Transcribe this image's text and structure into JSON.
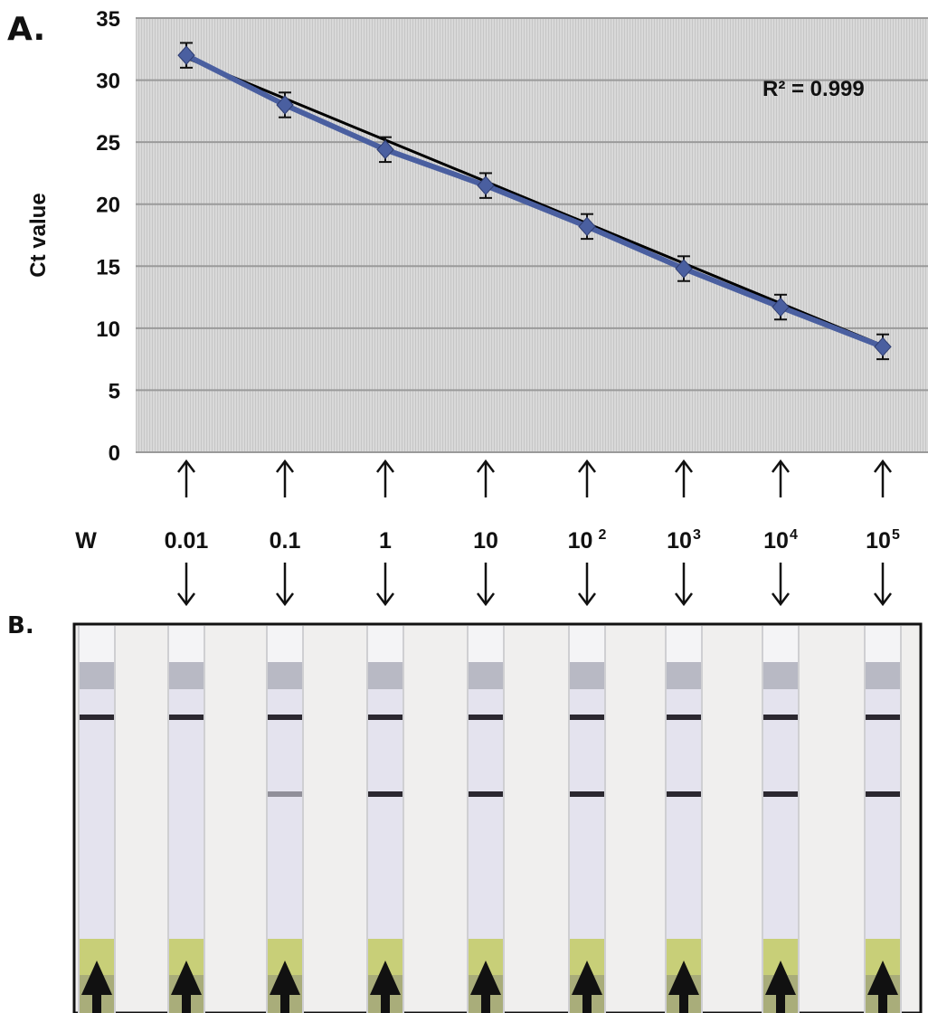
{
  "panels": {
    "a_label": "A.",
    "b_label": "B."
  },
  "chart_data": {
    "type": "line",
    "ylabel": "Ct value",
    "ylim": [
      0,
      35
    ],
    "yticks": [
      0,
      5,
      10,
      15,
      20,
      25,
      30,
      35
    ],
    "grid": true,
    "x": [
      "0.01",
      "0.1",
      "1",
      "10",
      "10^2",
      "10^3",
      "10^4",
      "10^5"
    ],
    "series": [
      {
        "values": [
          32.0,
          28.0,
          24.4,
          21.5,
          18.2,
          14.8,
          11.7,
          8.5
        ],
        "error": [
          1.0,
          1.0,
          1.0,
          1.0,
          1.0,
          1.0,
          1.0,
          1.0
        ],
        "color": "#4a5fa0"
      }
    ],
    "trendline": {
      "from": 31.8,
      "to": 8.6,
      "color": "#000000"
    },
    "annotation": "R² = 0.999"
  },
  "lanes": [
    {
      "label": "W",
      "base": "W",
      "exp": "",
      "test_line": 0
    },
    {
      "label": "0.01",
      "base": "0.01",
      "exp": "",
      "test_line": 0
    },
    {
      "label": "0.1",
      "base": "0.1",
      "exp": "",
      "test_line": 0.45
    },
    {
      "label": "1",
      "base": "1",
      "exp": "",
      "test_line": 1
    },
    {
      "label": "10",
      "base": "10",
      "exp": "",
      "test_line": 1
    },
    {
      "label": "10 2",
      "base": "10",
      "exp": "2",
      "test_line": 1
    },
    {
      "label": "103",
      "base": "10",
      "exp": "3",
      "test_line": 1
    },
    {
      "label": "104",
      "base": "10",
      "exp": "4",
      "test_line": 1
    },
    {
      "label": "105",
      "base": "10",
      "exp": "5",
      "test_line": 1
    }
  ],
  "colors": {
    "plot_bg": "#dcdcdc",
    "grid": "#9a9a9a",
    "strip": "#e4e3ee",
    "band": "#2b2830",
    "pad": "#c8cf78"
  }
}
